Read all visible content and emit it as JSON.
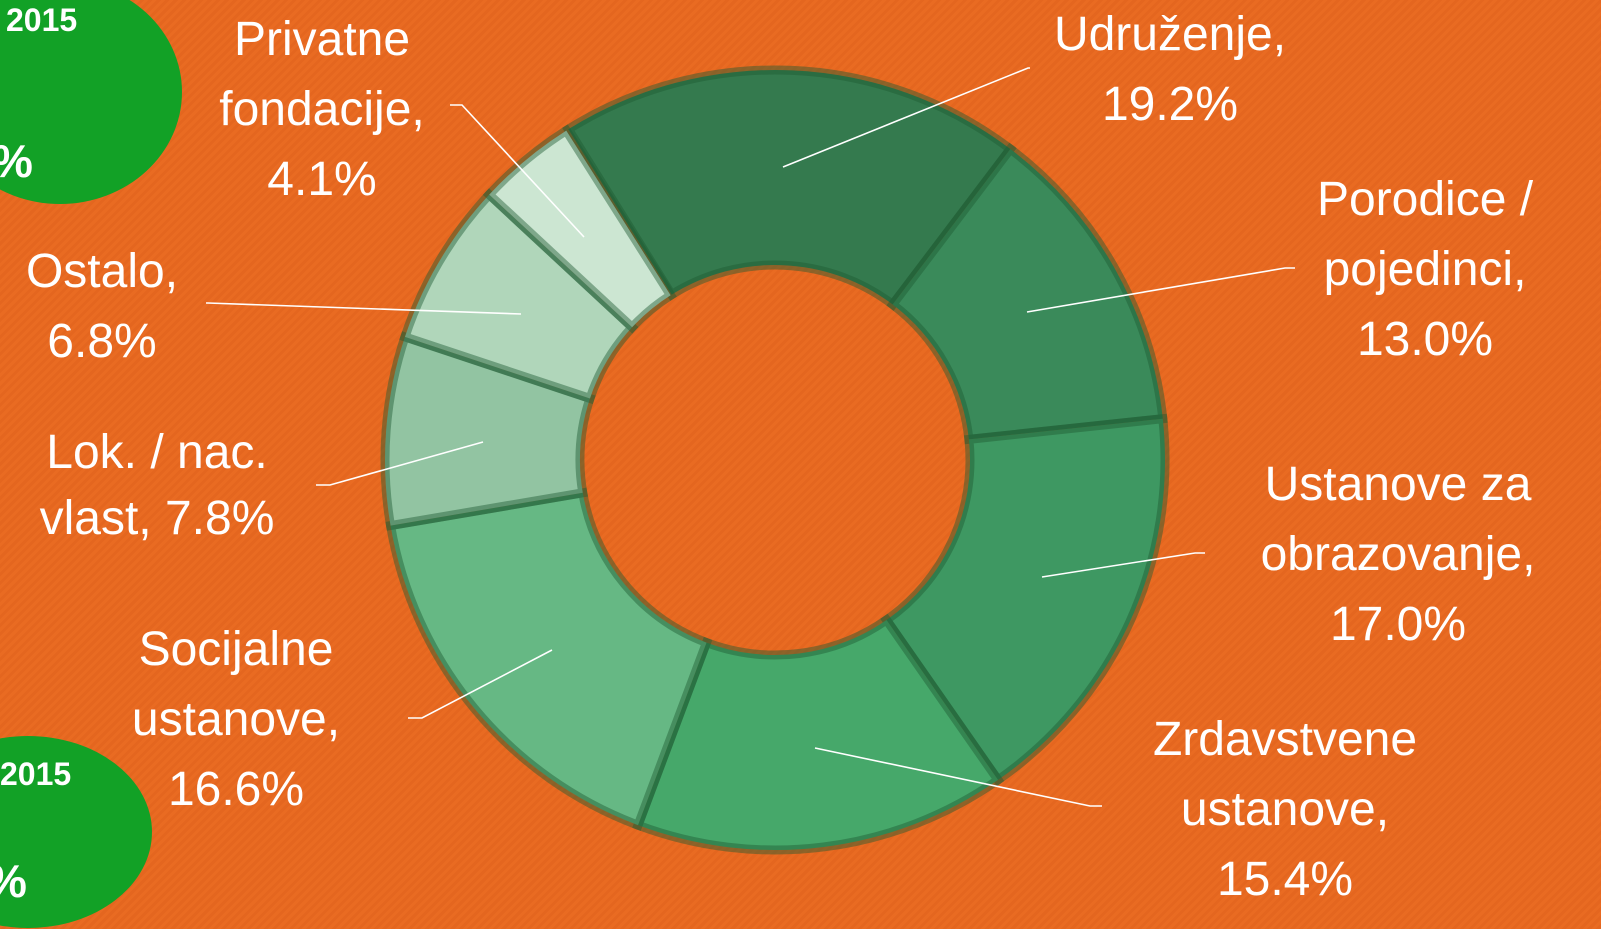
{
  "chart_data": {
    "type": "donut",
    "categories": [
      "Udruženje,",
      "Porodice / pojedinci,",
      "Ustanove za obrazovanje,",
      "Zrdavstvene ustanove,",
      "Socijalne ustanove,",
      "Lok. / nac. vlast,",
      "Ostalo,",
      "Privatne fondacije,"
    ],
    "values": [
      19.2,
      13.0,
      17.0,
      15.4,
      16.6,
      7.8,
      6.8,
      4.1
    ],
    "value_labels": [
      "19.2%",
      "13.0%",
      "17.0%",
      "15.4%",
      "16.6%",
      "7.8%",
      "6.8%",
      "4.1%"
    ],
    "colors": [
      "#347a4e",
      "#3a8a5a",
      "#3e9862",
      "#46a86a",
      "#66b884",
      "#92c4a2",
      "#b0d6ba",
      "#cce6d2"
    ]
  },
  "badges": [
    {
      "year": "2015",
      "suffix": "%"
    },
    {
      "year": "2015",
      "suffix": "%"
    }
  ]
}
